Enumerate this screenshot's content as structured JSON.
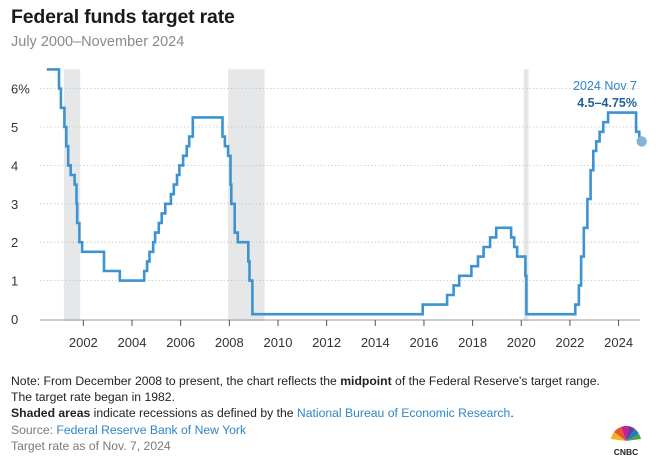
{
  "title": "Federal funds target rate",
  "subtitle": "July 2000–November 2024",
  "annotation": {
    "date": "2024 Nov 7",
    "value": "4.5–4.75%"
  },
  "notes": {
    "line1_pre": "Note: From December 2008 to present, the chart reflects the ",
    "line1_bold": "midpoint",
    "line1_post": " of the Federal Reserve's target range. The target rate began in 1982.",
    "shaded_bold": "Shaded areas",
    "shaded_text": " indicate recessions as defined by the ",
    "shaded_link": "National Bureau of Economic Research",
    "shaded_end": ".",
    "source_label": "Source: ",
    "source_link": "Federal Reserve Bank of New York",
    "asof": "Target rate as of Nov. 7, 2024"
  },
  "logo": {
    "text": "CNBC"
  },
  "colors": {
    "line": "#3d93cf",
    "recession": "#e6e7e8",
    "grid": "#b9b9b9",
    "dot": "#7fb4dc"
  },
  "chart_data": {
    "type": "line",
    "title": "Federal funds target rate",
    "xlim": [
      2000.5,
      2024.95
    ],
    "ylim": [
      0,
      6.5
    ],
    "ytick_values": [
      0,
      1,
      2,
      3,
      4,
      5,
      6
    ],
    "ytick_labels": [
      "0",
      "1",
      "2",
      "3",
      "4",
      "5",
      "6%"
    ],
    "xtick_values": [
      2002,
      2004,
      2006,
      2008,
      2010,
      2012,
      2014,
      2016,
      2018,
      2020,
      2022,
      2024
    ],
    "xtick_labels": [
      "2002",
      "2004",
      "2006",
      "2008",
      "2010",
      "2012",
      "2014",
      "2016",
      "2018",
      "2020",
      "2022",
      "2024"
    ],
    "recessions": [
      [
        2001.2,
        2001.87
      ],
      [
        2007.95,
        2009.45
      ],
      [
        2020.1,
        2020.3
      ]
    ],
    "series": [
      {
        "name": "Federal funds target rate",
        "steps": [
          [
            2000.5,
            6.5
          ],
          [
            2001.0,
            6.0
          ],
          [
            2001.08,
            5.5
          ],
          [
            2001.22,
            5.0
          ],
          [
            2001.3,
            4.5
          ],
          [
            2001.38,
            4.0
          ],
          [
            2001.48,
            3.75
          ],
          [
            2001.64,
            3.5
          ],
          [
            2001.72,
            3.0
          ],
          [
            2001.75,
            2.5
          ],
          [
            2001.84,
            2.0
          ],
          [
            2001.95,
            1.75
          ],
          [
            2002.85,
            1.25
          ],
          [
            2003.5,
            1.0
          ],
          [
            2004.5,
            1.25
          ],
          [
            2004.62,
            1.5
          ],
          [
            2004.72,
            1.75
          ],
          [
            2004.87,
            2.0
          ],
          [
            2004.95,
            2.25
          ],
          [
            2005.1,
            2.5
          ],
          [
            2005.22,
            2.75
          ],
          [
            2005.37,
            3.0
          ],
          [
            2005.6,
            3.25
          ],
          [
            2005.72,
            3.5
          ],
          [
            2005.85,
            3.75
          ],
          [
            2005.95,
            4.0
          ],
          [
            2006.1,
            4.25
          ],
          [
            2006.25,
            4.5
          ],
          [
            2006.35,
            4.75
          ],
          [
            2006.5,
            5.25
          ],
          [
            2007.72,
            4.75
          ],
          [
            2007.82,
            4.5
          ],
          [
            2007.95,
            4.25
          ],
          [
            2008.05,
            3.5
          ],
          [
            2008.08,
            3.0
          ],
          [
            2008.22,
            2.25
          ],
          [
            2008.35,
            2.0
          ],
          [
            2008.78,
            1.5
          ],
          [
            2008.83,
            1.0
          ],
          [
            2008.95,
            0.125
          ],
          [
            2015.95,
            0.375
          ],
          [
            2016.95,
            0.625
          ],
          [
            2017.22,
            0.875
          ],
          [
            2017.45,
            1.125
          ],
          [
            2017.95,
            1.375
          ],
          [
            2018.22,
            1.625
          ],
          [
            2018.45,
            1.875
          ],
          [
            2018.72,
            2.125
          ],
          [
            2018.97,
            2.375
          ],
          [
            2019.58,
            2.125
          ],
          [
            2019.71,
            1.875
          ],
          [
            2019.83,
            1.625
          ],
          [
            2020.17,
            1.125
          ],
          [
            2020.21,
            0.125
          ],
          [
            2022.22,
            0.375
          ],
          [
            2022.37,
            0.875
          ],
          [
            2022.46,
            1.625
          ],
          [
            2022.57,
            2.375
          ],
          [
            2022.72,
            3.125
          ],
          [
            2022.85,
            3.875
          ],
          [
            2022.96,
            4.375
          ],
          [
            2023.08,
            4.625
          ],
          [
            2023.22,
            4.875
          ],
          [
            2023.37,
            5.125
          ],
          [
            2023.57,
            5.375
          ],
          [
            2024.72,
            4.875
          ],
          [
            2024.85,
            4.625
          ]
        ]
      }
    ]
  }
}
